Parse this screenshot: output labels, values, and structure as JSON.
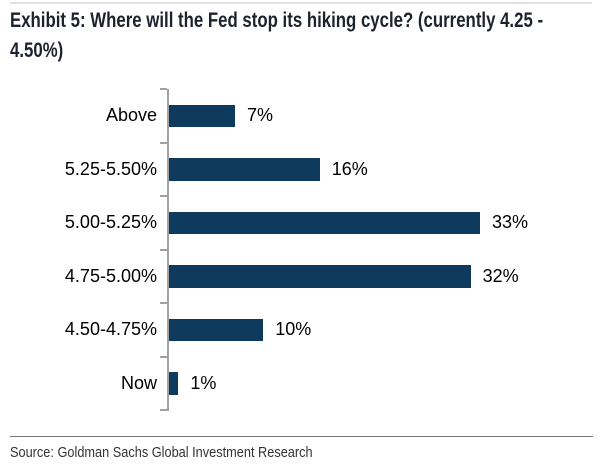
{
  "page": {
    "title_lines": [
      "Exhibit 5: Where will the Fed stop its hiking cycle? (currently 4.25 -",
      "4.50%)"
    ],
    "source": "Source: Goldman Sachs Global Investment Research"
  },
  "colors": {
    "bar": "#0e3a5e",
    "title_text": "#1c222e",
    "axis": "#a1a1a1",
    "top_rule": "#e2e2e2",
    "bottom_rule": "#767676",
    "label_text": "#000000",
    "source_text": "#333333"
  },
  "chart_data": {
    "type": "bar",
    "orientation": "horizontal",
    "title": "Exhibit 5: Where will the Fed stop its hiking cycle? (currently 4.25 - 4.50%)",
    "categories": [
      "Above",
      "5.25-5.50%",
      "5.00-5.25%",
      "4.75-5.00%",
      "4.50-4.75%",
      "Now"
    ],
    "values": [
      7,
      16,
      33,
      32,
      10,
      1
    ],
    "value_labels": [
      "7%",
      "16%",
      "33%",
      "32%",
      "10%",
      "1%"
    ],
    "unit": "%",
    "xlim": [
      0,
      35
    ],
    "grid": false,
    "legend": false,
    "value_labels_position": "end-of-bar",
    "source": "Source: Goldman Sachs Global Investment Research"
  }
}
